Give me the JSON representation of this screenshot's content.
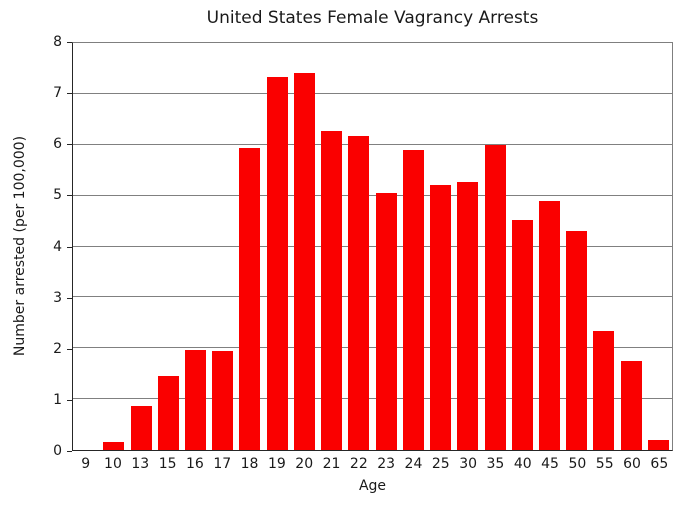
{
  "chart_data": {
    "type": "bar",
    "title": "United States Female Vagrancy Arrests",
    "xlabel": "Age",
    "ylabel": "Number arrested (per 100,000)",
    "categories": [
      "9",
      "10",
      "13",
      "15",
      "16",
      "17",
      "18",
      "19",
      "20",
      "21",
      "22",
      "23",
      "24",
      "25",
      "30",
      "35",
      "40",
      "45",
      "50",
      "55",
      "60",
      "65"
    ],
    "values": [
      0,
      0.16,
      0.87,
      1.46,
      1.96,
      1.94,
      5.93,
      7.33,
      7.41,
      6.27,
      6.18,
      5.05,
      5.9,
      5.2,
      5.27,
      5.99,
      4.53,
      4.9,
      4.31,
      2.33,
      1.75,
      0.2
    ],
    "ylim": [
      0,
      8
    ],
    "yticks": [
      0,
      1,
      2,
      3,
      4,
      5,
      6,
      7,
      8
    ],
    "grid": true,
    "legend_position": "none",
    "colors": {
      "bar": "#fa0000",
      "grid": "#808080",
      "frame": "#7f7f7f",
      "axis": "#262626"
    }
  }
}
